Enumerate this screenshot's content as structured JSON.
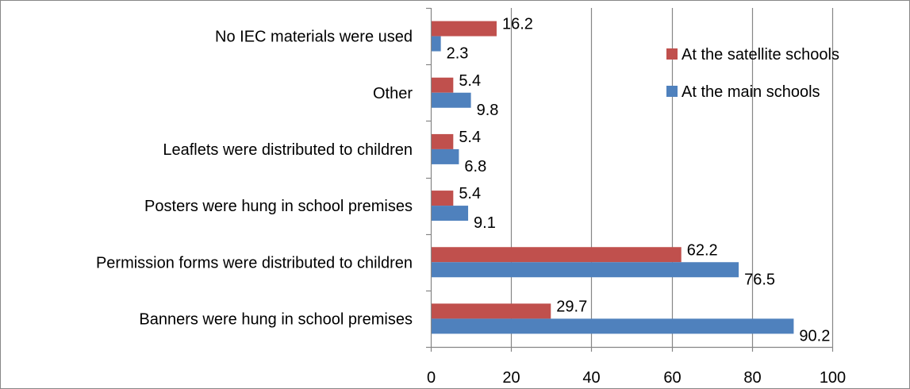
{
  "chart_data": {
    "type": "bar",
    "orientation": "horizontal",
    "categories": [
      "No IEC materials were used",
      "Other",
      "Leaflets were distributed to children",
      "Posters were hung in school premises",
      "Permission forms were distributed to children",
      "Banners were hung in school premises"
    ],
    "series": [
      {
        "name": "At the satellite schools",
        "color": "#C0504D",
        "values": [
          16.2,
          5.4,
          5.4,
          5.4,
          62.2,
          29.7
        ]
      },
      {
        "name": "At the main schools",
        "color": "#4F81BD",
        "values": [
          2.3,
          9.8,
          6.8,
          9.1,
          76.5,
          90.2
        ]
      }
    ],
    "xlim": [
      0,
      100
    ],
    "xticks": [
      0,
      20,
      40,
      60,
      80,
      100
    ],
    "grid": "vertical",
    "legend_position": "top-right"
  }
}
